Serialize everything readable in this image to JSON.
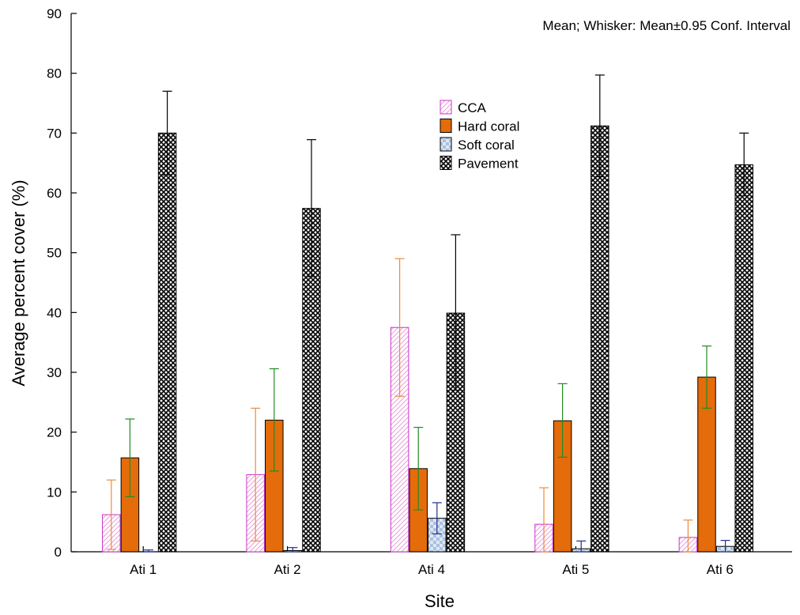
{
  "chart_data": {
    "type": "bar",
    "note": "Mean; Whisker: Mean±0.95 Conf. Interval",
    "xlabel": "Site",
    "ylabel": "Average percent cover (%)",
    "ylim": [
      0,
      90
    ],
    "yticks": [
      0,
      10,
      20,
      30,
      40,
      50,
      60,
      70,
      80,
      90
    ],
    "categories": [
      "Ati 1",
      "Ati 2",
      "Ati 4",
      "Ati 5",
      "Ati 6"
    ],
    "legend_position": "upper-center",
    "series": [
      {
        "name": "CCA",
        "pattern": "diagonal-hatch",
        "color": "#cc33cc",
        "whisker_color": "#f08a3a",
        "values": [
          6.2,
          12.9,
          37.5,
          4.6,
          2.4
        ],
        "ci_low": [
          0.4,
          1.8,
          26.0,
          0.0,
          0.0
        ],
        "ci_high": [
          12.0,
          24.0,
          49.0,
          10.7,
          5.3
        ]
      },
      {
        "name": "Hard coral",
        "pattern": "solid",
        "color": "#e46c0a",
        "whisker_color": "#228b22",
        "values": [
          15.7,
          22.0,
          13.9,
          21.9,
          29.2
        ],
        "ci_low": [
          9.2,
          13.5,
          7.0,
          15.8,
          24.0
        ],
        "ci_high": [
          22.2,
          30.6,
          20.8,
          28.1,
          34.4
        ]
      },
      {
        "name": "Soft coral",
        "pattern": "checker",
        "color": "#8fb0d8",
        "whisker_color": "#1f2f8f",
        "values": [
          0.0,
          0.2,
          5.6,
          0.5,
          0.9
        ],
        "ci_low": [
          0.0,
          0.0,
          3.0,
          0.0,
          0.0
        ],
        "ci_high": [
          0.3,
          0.7,
          8.2,
          1.8,
          1.9
        ]
      },
      {
        "name": "Pavement",
        "pattern": "crosshatch",
        "color": "#000000",
        "whisker_color": "#000000",
        "values": [
          70.0,
          57.4,
          39.9,
          71.2,
          64.7
        ],
        "ci_low": [
          63.0,
          46.0,
          27.0,
          62.7,
          59.5
        ],
        "ci_high": [
          77.0,
          68.9,
          53.0,
          79.7,
          70.0
        ]
      }
    ]
  }
}
